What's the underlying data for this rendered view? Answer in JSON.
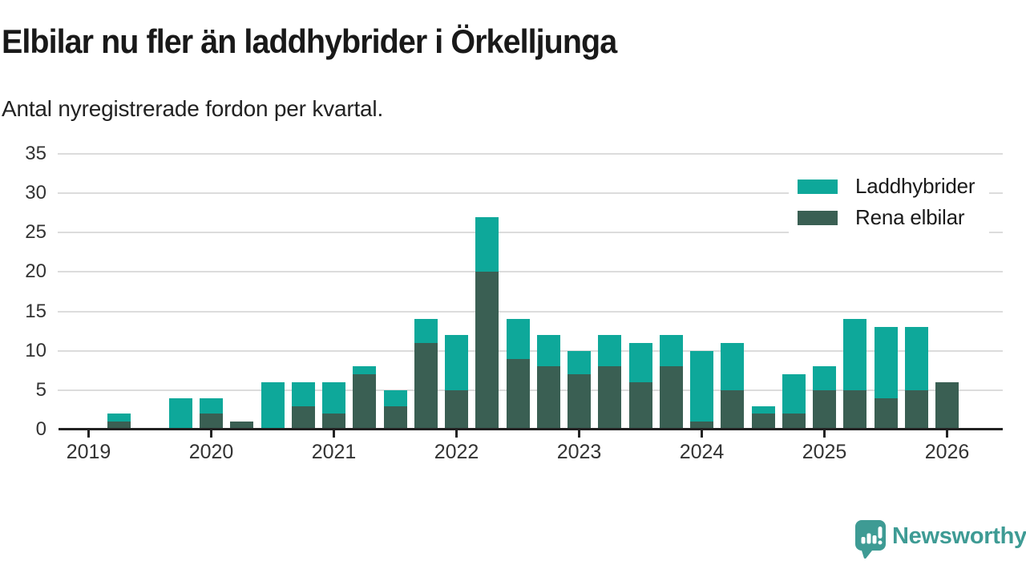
{
  "header": {
    "title": "Elbilar nu fler än laddhybrider i Örkelljunga",
    "subtitle": "Antal nyregistrerade fordon per kvartal."
  },
  "legend": {
    "items": [
      {
        "label": "Laddhybrider",
        "color": "#0ea89a"
      },
      {
        "label": "Rena elbilar",
        "color": "#3a5f53"
      }
    ]
  },
  "footer": {
    "brand": "Newsworthy",
    "brand_color": "#3e9b94"
  },
  "chart_data": {
    "type": "bar",
    "stacked": true,
    "title": "Elbilar nu fler än laddhybrider i Örkelljunga",
    "subtitle": "Antal nyregistrerade fordon per kvartal.",
    "xlabel": "",
    "ylabel": "",
    "ylim": [
      0,
      35
    ],
    "yticks": [
      0,
      5,
      10,
      15,
      20,
      25,
      30,
      35
    ],
    "grid": "horizontal",
    "legend_position": "top-right",
    "year_tick_labels": [
      "2019",
      "2020",
      "2021",
      "2022",
      "2023",
      "2024",
      "2025",
      "2026"
    ],
    "categories": [
      "2019 Q1",
      "2019 Q2",
      "2019 Q3",
      "2019 Q4",
      "2020 Q1",
      "2020 Q2",
      "2020 Q3",
      "2020 Q4",
      "2021 Q1",
      "2021 Q2",
      "2021 Q3",
      "2021 Q4",
      "2022 Q1",
      "2022 Q2",
      "2022 Q3",
      "2022 Q4",
      "2023 Q1",
      "2023 Q2",
      "2023 Q3",
      "2023 Q4",
      "2024 Q1",
      "2024 Q2",
      "2024 Q3",
      "2024 Q4",
      "2025 Q1",
      "2025 Q2",
      "2025 Q3",
      "2025 Q4",
      "2026 Q1"
    ],
    "series": [
      {
        "name": "Rena elbilar",
        "color": "#3a5f53",
        "stack": "bottom",
        "values": [
          0,
          1,
          0,
          0,
          2,
          1,
          0,
          3,
          2,
          7,
          3,
          11,
          5,
          20,
          9,
          8,
          7,
          8,
          6,
          8,
          1,
          5,
          2,
          2,
          5,
          5,
          4,
          5,
          6
        ]
      },
      {
        "name": "Laddhybrider",
        "color": "#0ea89a",
        "stack": "top",
        "values": [
          0,
          1,
          0,
          4,
          2,
          0,
          6,
          3,
          4,
          1,
          2,
          3,
          7,
          7,
          5,
          4,
          3,
          4,
          5,
          4,
          9,
          6,
          1,
          5,
          3,
          9,
          9,
          8,
          0
        ]
      }
    ],
    "totals": [
      0,
      2,
      0,
      4,
      4,
      1,
      6,
      6,
      6,
      8,
      5,
      14,
      12,
      27,
      14,
      12,
      10,
      12,
      11,
      12,
      10,
      11,
      3,
      7,
      8,
      14,
      13,
      13,
      6
    ]
  }
}
